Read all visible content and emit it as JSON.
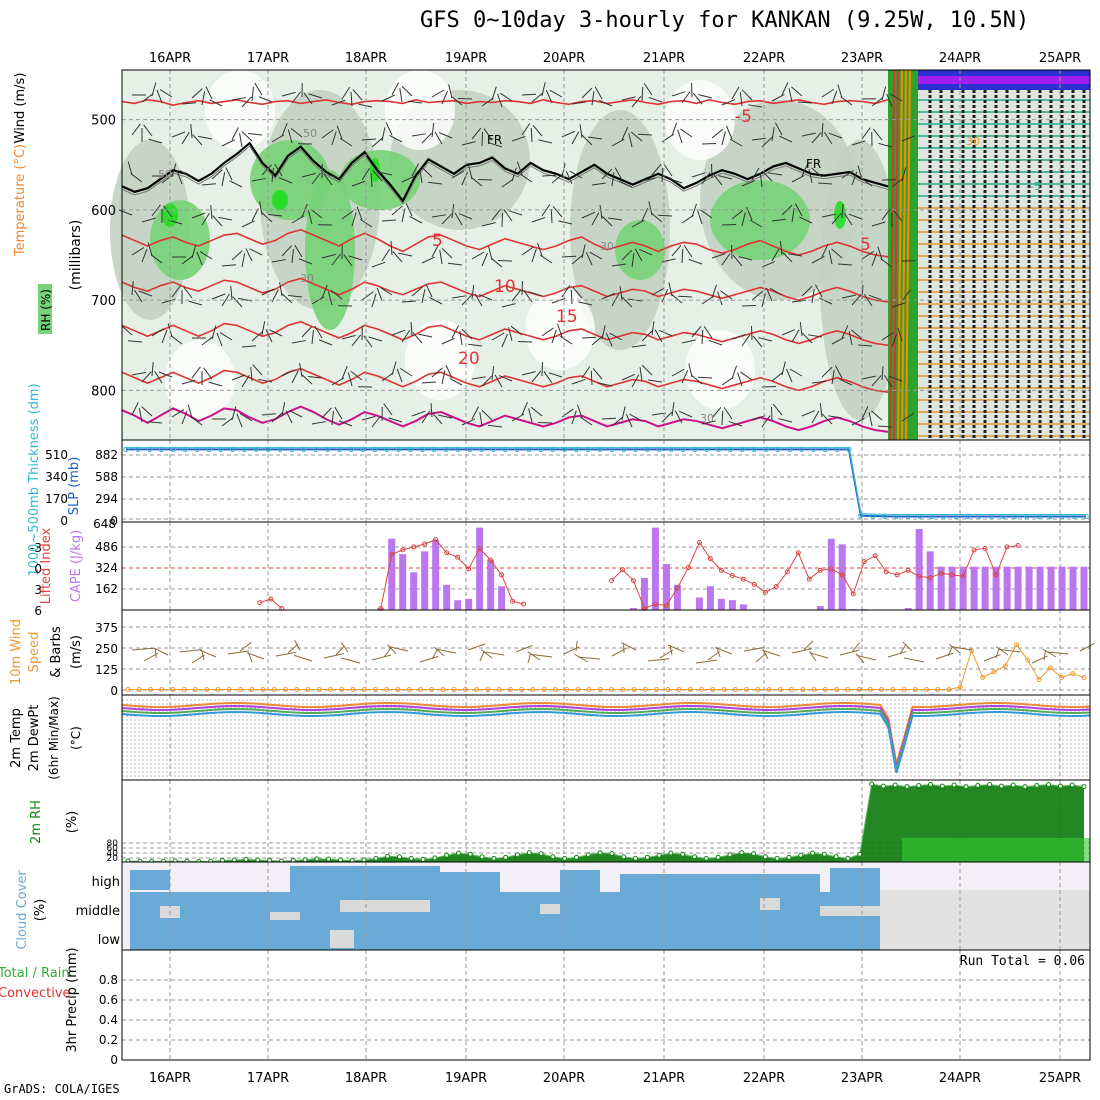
{
  "title": "GFS 0~10day 3-hourly for KANKAN (9.25W, 10.5N)",
  "footer": "GrADS: COLA/IGES",
  "dates": [
    "16APR",
    "17APR",
    "18APR",
    "19APR",
    "20APR",
    "21APR",
    "22APR",
    "23APR",
    "24APR",
    "25APR"
  ],
  "colors": {
    "rh_light": "#e6f0e6",
    "rh_mid": "#c2d2c2",
    "rh_green": "#77d377",
    "rh_bright": "#22dd22",
    "temp": "#dd3333",
    "freeze": "#000000",
    "wind": "#333333",
    "warm": "#cc1188",
    "slp": "#1f5fcf",
    "thick": "#33bbcc",
    "cape": "#bb77ee",
    "li": "#dd4444",
    "wind10": "#ee9933",
    "barb10": "#8b6c3a",
    "rh2m": "#118811",
    "cloud": "#6aaad6",
    "cloud_bg": "#f2f0f6",
    "precip_total": "#33aa33",
    "precip_conv": "#dd3333"
  },
  "chart_data": [
    {
      "panel": "upper_air",
      "type": "heatmap",
      "ylabel": "(millibars)",
      "legend_labels": [
        "Wind (m/s)",
        "Temperature (°C)",
        "RH (%)"
      ],
      "yticks": [
        500,
        600,
        700,
        800
      ],
      "ylim": [
        855,
        445
      ],
      "temp_labels": [
        "-5",
        "-5",
        "5",
        "5",
        "10",
        "15",
        "20",
        "30",
        "30",
        "30",
        "50",
        "50",
        "30"
      ],
      "freezing_label": "FR",
      "contours": [
        {
          "name": "-5",
          "values": [
            480,
            482,
            478,
            480,
            484,
            481,
            479,
            482,
            480,
            478,
            481,
            483,
            480,
            479,
            482,
            480,
            478,
            481,
            483,
            480,
            479,
            480,
            482,
            478,
            481,
            480,
            479,
            482,
            480,
            481,
            479,
            480,
            482,
            478,
            481,
            483,
            480,
            479,
            482,
            480,
            478,
            481,
            483,
            480,
            479,
            482,
            478,
            481,
            483,
            480,
            479,
            482,
            480,
            478,
            481,
            483,
            480,
            479,
            480,
            482,
            478
          ]
        },
        {
          "name": "0",
          "values": [
            574,
            580,
            576,
            566,
            556,
            560,
            568,
            560,
            548,
            538,
            526,
            548,
            562,
            540,
            530,
            546,
            558,
            566,
            548,
            536,
            556,
            572,
            590,
            562,
            544,
            552,
            560,
            550,
            548,
            542,
            554,
            560,
            548,
            556,
            560,
            566,
            558,
            550,
            560,
            566,
            572,
            566,
            560,
            566,
            576,
            570,
            562,
            556,
            560,
            566,
            560,
            552,
            548,
            554,
            560,
            562,
            560,
            558,
            566,
            570,
            574
          ]
        },
        {
          "name": "5",
          "values": [
            628,
            634,
            640,
            634,
            630,
            636,
            640,
            634,
            628,
            626,
            632,
            638,
            634,
            626,
            622,
            628,
            634,
            640,
            632,
            626,
            632,
            640,
            646,
            638,
            630,
            628,
            634,
            640,
            644,
            638,
            632,
            636,
            640,
            644,
            640,
            634,
            630,
            638,
            644,
            640,
            636,
            640,
            646,
            640,
            636,
            638,
            644,
            648,
            644,
            638,
            634,
            640,
            646,
            650,
            646,
            640,
            636,
            640,
            646,
            650,
            652
          ]
        },
        {
          "name": "10",
          "values": [
            680,
            686,
            690,
            684,
            680,
            686,
            690,
            684,
            678,
            680,
            686,
            692,
            688,
            680,
            676,
            682,
            688,
            694,
            688,
            680,
            684,
            690,
            694,
            688,
            682,
            680,
            686,
            692,
            696,
            690,
            684,
            688,
            692,
            696,
            692,
            686,
            684,
            690,
            696,
            692,
            688,
            690,
            696,
            692,
            688,
            690,
            694,
            698,
            694,
            690,
            686,
            690,
            696,
            700,
            696,
            690,
            686,
            690,
            696,
            700,
            702
          ]
        },
        {
          "name": "15",
          "values": [
            728,
            734,
            740,
            734,
            728,
            734,
            740,
            734,
            726,
            728,
            734,
            740,
            736,
            728,
            724,
            730,
            736,
            742,
            736,
            728,
            732,
            738,
            744,
            738,
            730,
            728,
            734,
            740,
            744,
            738,
            732,
            736,
            740,
            744,
            740,
            734,
            732,
            738,
            744,
            740,
            736,
            738,
            744,
            740,
            736,
            738,
            742,
            746,
            742,
            738,
            734,
            738,
            744,
            748,
            744,
            738,
            734,
            738,
            744,
            748,
            750
          ]
        },
        {
          "name": "20",
          "values": [
            780,
            786,
            792,
            786,
            780,
            786,
            792,
            786,
            778,
            780,
            786,
            792,
            788,
            780,
            776,
            782,
            788,
            794,
            788,
            780,
            784,
            790,
            796,
            790,
            782,
            780,
            786,
            792,
            796,
            790,
            784,
            788,
            792,
            796,
            792,
            786,
            784,
            790,
            796,
            792,
            788,
            790,
            796,
            792,
            788,
            790,
            794,
            798,
            794,
            790,
            786,
            790,
            796,
            800,
            796,
            790,
            786,
            790,
            796,
            800,
            802
          ]
        },
        {
          "name": "25",
          "values": [
            822,
            828,
            836,
            828,
            820,
            826,
            834,
            828,
            820,
            822,
            830,
            836,
            832,
            824,
            818,
            824,
            832,
            838,
            832,
            824,
            828,
            834,
            840,
            834,
            826,
            824,
            830,
            836,
            840,
            834,
            828,
            832,
            836,
            840,
            836,
            830,
            828,
            834,
            840,
            836,
            832,
            834,
            840,
            836,
            832,
            834,
            838,
            842,
            838,
            834,
            830,
            834,
            840,
            844,
            840,
            834,
            830,
            834,
            840,
            844,
            846
          ]
        }
      ]
    },
    {
      "panel": "slp_thickness",
      "type": "line",
      "ylabel": "SLP (mb)",
      "ylabel2": "1000~500mb Thickness (dm)",
      "yticks_left": [
        "882",
        "588",
        "294",
        "0"
      ],
      "yticks_right": [
        "510",
        "340",
        "170",
        "0"
      ],
      "bottom_label": "648",
      "series": [
        {
          "values": [
            882,
            882,
            882,
            882,
            882,
            882,
            882,
            882,
            882,
            882,
            882,
            882,
            882,
            882,
            882,
            882,
            882,
            882,
            882,
            882,
            882,
            882,
            882,
            882,
            882,
            882,
            882,
            882,
            882,
            882,
            882,
            882,
            882,
            882,
            882,
            882,
            882,
            882,
            882,
            882,
            882,
            882,
            882,
            882,
            882,
            882,
            882,
            882,
            882,
            882,
            882,
            882,
            882,
            882,
            882,
            882,
            882,
            882,
            882,
            882,
            882,
            882,
            30,
            25,
            22,
            20,
            20,
            20,
            20,
            20,
            20,
            20,
            20,
            20,
            20,
            20,
            20,
            20,
            20,
            20,
            20,
            20
          ]
        }
      ]
    },
    {
      "panel": "cape_li",
      "type": "bar",
      "ylabel": "CAPE (J/kg)",
      "ylabel2": "Lifted Index",
      "yticks_left": [
        "486",
        "324",
        "162"
      ],
      "yticks_right": [
        "-3",
        "0",
        "3",
        "6"
      ],
      "ylim": [
        0,
        630
      ],
      "cape": [
        0,
        0,
        0,
        0,
        0,
        0,
        0,
        0,
        0,
        0,
        0,
        0,
        0,
        0,
        0,
        0,
        0,
        0,
        0,
        0,
        0,
        0,
        0,
        14,
        510,
        400,
        270,
        420,
        500,
        180,
        70,
        80,
        590,
        360,
        170,
        0,
        0,
        0,
        0,
        0,
        0,
        0,
        0,
        0,
        0,
        0,
        14,
        230,
        590,
        330,
        180,
        0,
        90,
        170,
        80,
        70,
        40,
        0,
        0,
        0,
        0,
        0,
        0,
        28,
        510,
        470,
        6,
        6,
        0,
        0,
        0,
        14,
        580,
        420,
        310,
        310,
        310,
        310,
        310,
        310,
        310,
        310,
        310,
        310,
        310,
        310,
        310,
        310
      ],
      "lifted_index": [
        null,
        null,
        null,
        null,
        null,
        null,
        null,
        null,
        null,
        null,
        null,
        null,
        5.0,
        4.5,
        5.8,
        null,
        null,
        null,
        null,
        null,
        null,
        null,
        null,
        5.8,
        -1.6,
        -2.2,
        -2.6,
        -3.0,
        -3.6,
        -1.8,
        -1.2,
        0.4,
        -2.4,
        -0.8,
        1.2,
        4.8,
        5.2,
        null,
        null,
        null,
        null,
        null,
        null,
        null,
        2.0,
        0.5,
        2.0,
        5.8,
        5.2,
        5.4,
        3.0,
        0.2,
        -3.2,
        -1.0,
        0.6,
        1.3,
        1.8,
        2.5,
        3.6,
        2.8,
        0.8,
        -1.8,
        1.8,
        0.6,
        0.4,
        1.2,
        3.8,
        -0.6,
        -1.4,
        0.8,
        1.2,
        0.6,
        1.4,
        1.6,
        1.0,
        1.2,
        1.4,
        -2.2,
        -2.4,
        1.2,
        -2.6,
        -2.8
      ]
    },
    {
      "panel": "wind10m",
      "type": "line",
      "ylabel": "10m Wind Speed & Barbs (m/s)",
      "yticks": [
        "375",
        "250",
        "125",
        "0"
      ],
      "ylim": [
        0,
        400
      ],
      "speed": [
        8,
        8,
        8,
        8,
        8,
        8,
        8,
        8,
        8,
        8,
        8,
        8,
        8,
        8,
        8,
        8,
        8,
        8,
        8,
        8,
        8,
        8,
        8,
        8,
        8,
        8,
        8,
        8,
        8,
        8,
        8,
        8,
        8,
        8,
        8,
        8,
        8,
        8,
        8,
        8,
        8,
        8,
        8,
        8,
        8,
        8,
        8,
        8,
        8,
        8,
        8,
        8,
        8,
        8,
        8,
        8,
        8,
        8,
        8,
        8,
        8,
        8,
        8,
        8,
        8,
        8,
        8,
        8,
        8,
        8,
        8,
        8,
        8,
        8,
        20,
        210,
        70,
        100,
        130,
        240,
        160,
        60,
        120,
        70,
        90,
        70
      ]
    },
    {
      "panel": "temp2m",
      "type": "line",
      "ylabel": "2m Temp 2m DewPt (6hr Min/Max) (°C)",
      "ylim": [
        -100,
        40
      ]
    },
    {
      "panel": "rh2m",
      "type": "area",
      "ylabel": "2m RH (%)",
      "yticks": [
        "80",
        "60",
        "40",
        "20"
      ],
      "ylim": [
        0,
        300
      ],
      "values": [
        4,
        3,
        2,
        3,
        4,
        3,
        2,
        3,
        6,
        8,
        10,
        8,
        6,
        4,
        6,
        9,
        12,
        11,
        8,
        6,
        8,
        14,
        22,
        20,
        14,
        10,
        16,
        26,
        34,
        30,
        20,
        14,
        18,
        28,
        36,
        32,
        20,
        14,
        18,
        28,
        36,
        32,
        20,
        14,
        18,
        26,
        34,
        30,
        20,
        14,
        18,
        28,
        36,
        32,
        20,
        14,
        18,
        26,
        34,
        30,
        20,
        14,
        30,
        300,
        292,
        296,
        290,
        294,
        298,
        292,
        296,
        290,
        294,
        298,
        292,
        296,
        290,
        294,
        298,
        292,
        296,
        290
      ]
    },
    {
      "panel": "cloud_cover",
      "type": "heatmap",
      "ylabel": "Cloud Cover (%)",
      "levels": [
        "high",
        "middle",
        "low"
      ]
    },
    {
      "panel": "precip",
      "type": "bar",
      "ylabel": "3hr Precip (mm)",
      "ylabel2": "Total / Rain",
      "ylabel3": "Convective",
      "run_total": "Run Total = 0.06",
      "yticks": [
        "0.8",
        "0.6",
        "0.4",
        "0.2",
        "0"
      ],
      "ylim": [
        0,
        1.0
      ],
      "values": [
        {
          "date_index": 1,
          "fraction_of_day": 0.78,
          "total": 0.06,
          "convective": 0.06
        }
      ]
    }
  ]
}
